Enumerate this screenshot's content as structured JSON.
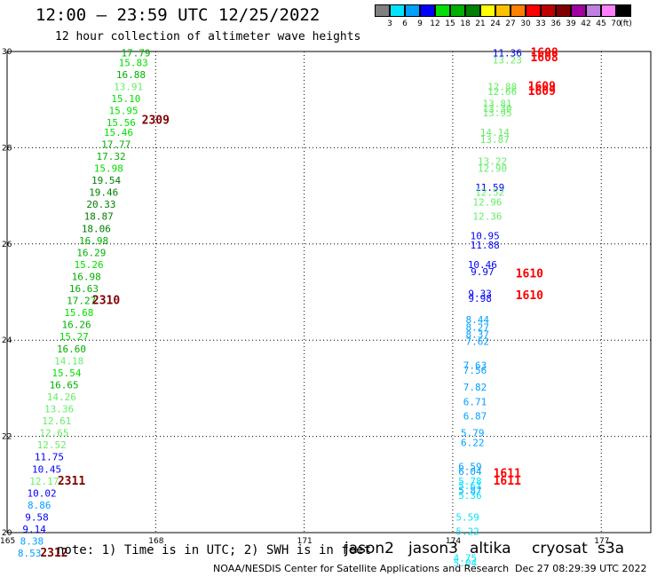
{
  "header": {
    "title": "12:00 – 23:59 UTC 12/25/2022",
    "subtitle": "12 hour collection of altimeter wave heights"
  },
  "colorbar": {
    "unit": "(ft)",
    "bins": [
      {
        "label": "3",
        "color": "#808080"
      },
      {
        "label": "6",
        "color": "#00e5ff"
      },
      {
        "label": "9",
        "color": "#00a0ff"
      },
      {
        "label": "12",
        "color": "#0000ff"
      },
      {
        "label": "15",
        "color": "#00e000"
      },
      {
        "label": "18",
        "color": "#00b000"
      },
      {
        "label": "21",
        "color": "#008000"
      },
      {
        "label": "24",
        "color": "#ffff00"
      },
      {
        "label": "27",
        "color": "#ffc000"
      },
      {
        "label": "30",
        "color": "#ff8000"
      },
      {
        "label": "33",
        "color": "#ff0000"
      },
      {
        "label": "36",
        "color": "#c00000"
      },
      {
        "label": "39",
        "color": "#800000"
      },
      {
        "label": "42",
        "color": "#a000a0"
      },
      {
        "label": "45",
        "color": "#c080e0"
      },
      {
        "label": "70",
        "color": "#ff80ff"
      },
      {
        "label": "",
        "color": "#000000"
      }
    ]
  },
  "chart_data": {
    "type": "scatter",
    "xlim": [
      165,
      178
    ],
    "ylim": [
      20,
      30
    ],
    "xticks": [
      {
        "value": 165,
        "label": "165"
      },
      {
        "value": 168,
        "label": "168"
      },
      {
        "value": 171,
        "label": "171"
      },
      {
        "value": 174,
        "label": "174"
      },
      {
        "value": 177,
        "label": "177"
      }
    ],
    "yticks": [
      {
        "value": 20,
        "label": "20"
      },
      {
        "value": 22,
        "label": "22"
      },
      {
        "value": 24,
        "label": "24"
      },
      {
        "value": 26,
        "label": "26"
      },
      {
        "value": 28,
        "label": "28"
      },
      {
        "value": 30,
        "label": "30"
      }
    ],
    "grid": true,
    "points": [
      {
        "x": 167.6,
        "y": 29.9,
        "label": "17.79",
        "color": "#00b000"
      },
      {
        "x": 167.55,
        "y": 29.7,
        "label": "15.83",
        "color": "#00e000"
      },
      {
        "x": 167.5,
        "y": 29.45,
        "label": "16.88",
        "color": "#00b000"
      },
      {
        "x": 167.45,
        "y": 29.2,
        "label": "13.91",
        "color": "#66ee66"
      },
      {
        "x": 167.4,
        "y": 28.95,
        "label": "15.10",
        "color": "#00e000"
      },
      {
        "x": 167.35,
        "y": 28.7,
        "label": "15.95",
        "color": "#00e000"
      },
      {
        "x": 167.3,
        "y": 28.45,
        "label": "15.56",
        "color": "#00e000"
      },
      {
        "x": 167.25,
        "y": 28.25,
        "label": "15.46",
        "color": "#00e000"
      },
      {
        "x": 167.2,
        "y": 28.0,
        "label": "17.77",
        "color": "#00b000"
      },
      {
        "x": 167.1,
        "y": 27.75,
        "label": "17.32",
        "color": "#00b000"
      },
      {
        "x": 167.05,
        "y": 27.5,
        "label": "15.98",
        "color": "#00e000"
      },
      {
        "x": 167.0,
        "y": 27.25,
        "label": "19.54",
        "color": "#008000"
      },
      {
        "x": 166.95,
        "y": 27.0,
        "label": "19.46",
        "color": "#008000"
      },
      {
        "x": 166.9,
        "y": 26.75,
        "label": "20.33",
        "color": "#008000"
      },
      {
        "x": 166.85,
        "y": 26.5,
        "label": "18.87",
        "color": "#008000"
      },
      {
        "x": 166.8,
        "y": 26.25,
        "label": "18.06",
        "color": "#008000"
      },
      {
        "x": 166.75,
        "y": 26.0,
        "label": "16.98",
        "color": "#00b000"
      },
      {
        "x": 166.7,
        "y": 25.75,
        "label": "16.29",
        "color": "#00b000"
      },
      {
        "x": 166.65,
        "y": 25.5,
        "label": "15.26",
        "color": "#00e000"
      },
      {
        "x": 166.6,
        "y": 25.25,
        "label": "16.98",
        "color": "#00b000"
      },
      {
        "x": 166.55,
        "y": 25.0,
        "label": "16.63",
        "color": "#00b000"
      },
      {
        "x": 166.5,
        "y": 24.75,
        "label": "17.27",
        "color": "#00b000"
      },
      {
        "x": 166.45,
        "y": 24.5,
        "label": "15.68",
        "color": "#00e000"
      },
      {
        "x": 166.4,
        "y": 24.25,
        "label": "16.26",
        "color": "#00b000"
      },
      {
        "x": 166.35,
        "y": 24.0,
        "label": "15.27",
        "color": "#00e000"
      },
      {
        "x": 166.3,
        "y": 23.75,
        "label": "16.60",
        "color": "#00b000"
      },
      {
        "x": 166.25,
        "y": 23.5,
        "label": "14.18",
        "color": "#66ee66"
      },
      {
        "x": 166.2,
        "y": 23.25,
        "label": "15.54",
        "color": "#00e000"
      },
      {
        "x": 166.15,
        "y": 23.0,
        "label": "16.65",
        "color": "#00b000"
      },
      {
        "x": 166.1,
        "y": 22.75,
        "label": "14.26",
        "color": "#66ee66"
      },
      {
        "x": 166.05,
        "y": 22.5,
        "label": "13.36",
        "color": "#66ee66"
      },
      {
        "x": 166.0,
        "y": 22.25,
        "label": "12.61",
        "color": "#66ee66"
      },
      {
        "x": 165.95,
        "y": 22.0,
        "label": "12.65",
        "color": "#66ee66"
      },
      {
        "x": 165.9,
        "y": 21.75,
        "label": "12.52",
        "color": "#66ee66"
      },
      {
        "x": 165.85,
        "y": 21.5,
        "label": "11.75",
        "color": "#0000ff"
      },
      {
        "x": 165.8,
        "y": 21.25,
        "label": "10.45",
        "color": "#0000ff"
      },
      {
        "x": 165.75,
        "y": 21.0,
        "label": "12.17",
        "color": "#66ee66"
      },
      {
        "x": 165.7,
        "y": 20.75,
        "label": "10.02",
        "color": "#0000ff"
      },
      {
        "x": 165.65,
        "y": 20.5,
        "label": "8.86",
        "color": "#00a0ff"
      },
      {
        "x": 165.6,
        "y": 20.25,
        "label": "9.58",
        "color": "#0000ff"
      },
      {
        "x": 165.55,
        "y": 20.0,
        "label": "9.14",
        "color": "#0000ff"
      },
      {
        "x": 165.5,
        "y": 19.75,
        "label": "8.38",
        "color": "#00a0ff"
      },
      {
        "x": 165.45,
        "y": 19.5,
        "label": "8.53",
        "color": "#00a0ff"
      },
      {
        "x": 175.1,
        "y": 29.9,
        "label": "11.36",
        "color": "#0000ff"
      },
      {
        "x": 175.1,
        "y": 29.75,
        "label": "13.23",
        "color": "#66ee66"
      },
      {
        "x": 175.0,
        "y": 29.2,
        "label": "12.88",
        "color": "#66ee66"
      },
      {
        "x": 175.0,
        "y": 29.1,
        "label": "12.66",
        "color": "#66ee66"
      },
      {
        "x": 174.9,
        "y": 28.85,
        "label": "13.81",
        "color": "#66ee66"
      },
      {
        "x": 174.9,
        "y": 28.75,
        "label": "13.30",
        "color": "#66ee66"
      },
      {
        "x": 174.9,
        "y": 28.65,
        "label": "13.95",
        "color": "#66ee66"
      },
      {
        "x": 174.85,
        "y": 28.25,
        "label": "14.14",
        "color": "#66ee66"
      },
      {
        "x": 174.85,
        "y": 28.1,
        "label": "13.87",
        "color": "#66ee66"
      },
      {
        "x": 174.8,
        "y": 27.65,
        "label": "13.22",
        "color": "#66ee66"
      },
      {
        "x": 174.8,
        "y": 27.5,
        "label": "12.90",
        "color": "#66ee66"
      },
      {
        "x": 174.75,
        "y": 27.1,
        "label": "11.59",
        "color": "#0000ff"
      },
      {
        "x": 174.75,
        "y": 27.0,
        "label": "12.52",
        "color": "#66ee66"
      },
      {
        "x": 174.7,
        "y": 26.8,
        "label": "12.96",
        "color": "#66ee66"
      },
      {
        "x": 174.7,
        "y": 26.5,
        "label": "12.36",
        "color": "#66ee66"
      },
      {
        "x": 174.65,
        "y": 26.1,
        "label": "10.95",
        "color": "#0000ff"
      },
      {
        "x": 174.65,
        "y": 25.9,
        "label": "11.88",
        "color": "#0000ff"
      },
      {
        "x": 174.6,
        "y": 25.5,
        "label": "10.46",
        "color": "#0000ff"
      },
      {
        "x": 174.6,
        "y": 25.35,
        "label": "9.97",
        "color": "#0000ff"
      },
      {
        "x": 174.55,
        "y": 24.9,
        "label": "9.33",
        "color": "#0000ff"
      },
      {
        "x": 174.55,
        "y": 24.8,
        "label": "9.98",
        "color": "#0000ff"
      },
      {
        "x": 174.5,
        "y": 24.35,
        "label": "8.44",
        "color": "#00a0ff"
      },
      {
        "x": 174.5,
        "y": 24.2,
        "label": "8.27",
        "color": "#00a0ff"
      },
      {
        "x": 174.5,
        "y": 24.05,
        "label": "8.37",
        "color": "#00a0ff"
      },
      {
        "x": 174.5,
        "y": 23.9,
        "label": "7.62",
        "color": "#00a0ff"
      },
      {
        "x": 174.45,
        "y": 23.4,
        "label": "7.63",
        "color": "#00a0ff"
      },
      {
        "x": 174.45,
        "y": 23.3,
        "label": "7.56",
        "color": "#00a0ff"
      },
      {
        "x": 174.45,
        "y": 22.95,
        "label": "7.82",
        "color": "#00a0ff"
      },
      {
        "x": 174.45,
        "y": 22.65,
        "label": "6.71",
        "color": "#00a0ff"
      },
      {
        "x": 174.45,
        "y": 22.35,
        "label": "6.87",
        "color": "#00a0ff"
      },
      {
        "x": 174.4,
        "y": 22.0,
        "label": "5.79",
        "color": "#00a0ff"
      },
      {
        "x": 174.4,
        "y": 21.8,
        "label": "6.22",
        "color": "#00a0ff"
      },
      {
        "x": 174.35,
        "y": 21.3,
        "label": "6.59",
        "color": "#00a0ff"
      },
      {
        "x": 174.35,
        "y": 21.2,
        "label": "6.04",
        "color": "#00a0ff"
      },
      {
        "x": 174.35,
        "y": 21.0,
        "label": "5.78",
        "color": "#00e5ff"
      },
      {
        "x": 174.35,
        "y": 20.9,
        "label": "5.61",
        "color": "#00e5ff"
      },
      {
        "x": 174.35,
        "y": 20.8,
        "label": "5.87",
        "color": "#00a0ff"
      },
      {
        "x": 174.35,
        "y": 20.7,
        "label": "5.36",
        "color": "#00e5ff"
      },
      {
        "x": 174.3,
        "y": 20.25,
        "label": "5.59",
        "color": "#00e5ff"
      },
      {
        "x": 174.3,
        "y": 19.95,
        "label": "5.22",
        "color": "#00e5ff"
      },
      {
        "x": 174.25,
        "y": 19.4,
        "label": "4.75",
        "color": "#00e5ff"
      },
      {
        "x": 174.25,
        "y": 19.3,
        "label": "5.04",
        "color": "#00e5ff"
      }
    ],
    "annotations": [
      {
        "x": 168.0,
        "y": 28.5,
        "label": "2309",
        "color": "#800000"
      },
      {
        "x": 167.0,
        "y": 24.75,
        "label": "2310",
        "color": "#800000"
      },
      {
        "x": 166.3,
        "y": 21.0,
        "label": "2311",
        "color": "#800000"
      },
      {
        "x": 165.95,
        "y": 19.5,
        "label": "2312",
        "color": "#800000"
      },
      {
        "x": 175.85,
        "y": 29.9,
        "label": "1608",
        "color": "#ff0000"
      },
      {
        "x": 175.85,
        "y": 29.8,
        "label": "1608",
        "color": "#ff0000"
      },
      {
        "x": 175.8,
        "y": 29.2,
        "label": "1609",
        "color": "#ff0000"
      },
      {
        "x": 175.8,
        "y": 29.1,
        "label": "1609",
        "color": "#ff0000"
      },
      {
        "x": 175.55,
        "y": 25.3,
        "label": "1610",
        "color": "#ff0000"
      },
      {
        "x": 175.55,
        "y": 24.85,
        "label": "1610",
        "color": "#ff0000"
      },
      {
        "x": 175.1,
        "y": 21.15,
        "label": "1611",
        "color": "#ff0000"
      },
      {
        "x": 175.1,
        "y": 21.0,
        "label": "1611",
        "color": "#ff0000"
      }
    ]
  },
  "footer": {
    "note": "note: 1) Time is in UTC; 2) SWH is in feet",
    "satellites": [
      {
        "name": "jason2",
        "color": "#0000cc"
      },
      {
        "name": "jason3",
        "color": "#009900"
      },
      {
        "name": "altika",
        "color": "#ff8c00"
      },
      {
        "name": "cryosat",
        "color": "#ff0000"
      },
      {
        "name": "s3a",
        "color": "#cc0000"
      }
    ],
    "credit": "NOAA/NESDIS Center for Satellite Applications and Research",
    "timestamp": "Dec 27 08:29:39 UTC 2022"
  }
}
